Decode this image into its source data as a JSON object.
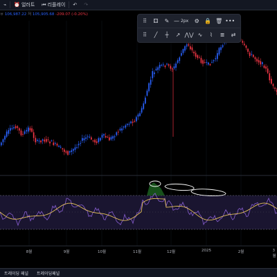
{
  "toolbar": {
    "alert_label": "얼러트",
    "replay_label": "리플레이",
    "undo_glyph": "↶",
    "redo_glyph": "↷"
  },
  "ohlc": {
    "prefix": "ㅂ",
    "value1": "106,987.22",
    "label2": "저",
    "value2": "105,905.68",
    "change": "-209.07 (-0.20%)"
  },
  "drawing_toolbar": {
    "width_label": "2px"
  },
  "xaxis": {
    "labels": [
      "8월",
      "9월",
      "10월",
      "11월",
      "12월",
      "2025",
      "2월",
      "3월"
    ]
  },
  "bottombar": {
    "item1": "트레이딩 패널",
    "item2": "트레이딩패널"
  },
  "colors": {
    "up": "#2962ff",
    "down": "#f23645",
    "indicator": "#7e57c2",
    "signal": "#e6c15a",
    "band_fill": "#1a1530",
    "annotation": "#ffffff",
    "highlight": "#1b5e20"
  }
}
